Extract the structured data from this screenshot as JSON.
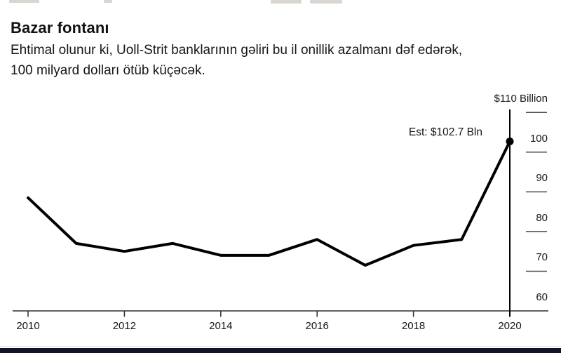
{
  "page": {
    "background": "#ffffff",
    "footer_bar_color": "#131327"
  },
  "header": {
    "title": "Bazar fontanı",
    "subtitle_lines": [
      "Ehtimal olunur ki, Uoll-Strit banklarının gəliri bu il onillik azalmanı dəf edərək,",
      "100 milyard dolları ötüb küçəcək."
    ]
  },
  "chart_data": {
    "type": "line",
    "title": "Bazar fontanı",
    "x": [
      2010,
      2011,
      2012,
      2013,
      2014,
      2015,
      2016,
      2017,
      2018,
      2019,
      2020
    ],
    "values": [
      88.5,
      77,
      75,
      77,
      74,
      74,
      78,
      71.5,
      76.5,
      78,
      102.7
    ],
    "annotation": "Est: $102.7 Bln",
    "xticks": [
      "2010",
      "2012",
      "2014",
      "2016",
      "2018",
      "2020"
    ],
    "yticks": [
      {
        "value": 110,
        "label": "$110 Billion"
      },
      {
        "value": 100,
        "label": "100"
      },
      {
        "value": 90,
        "label": "90"
      },
      {
        "value": 80,
        "label": "80"
      },
      {
        "value": 70,
        "label": "70"
      },
      {
        "value": 60,
        "label": "60"
      }
    ],
    "ylim": [
      60,
      110
    ],
    "grid": false,
    "legend": false,
    "line_color": "#000000",
    "axis_color": "#2e2e2e",
    "tick_color": "#4a4a4a",
    "marker": "dot-on-last-point"
  }
}
